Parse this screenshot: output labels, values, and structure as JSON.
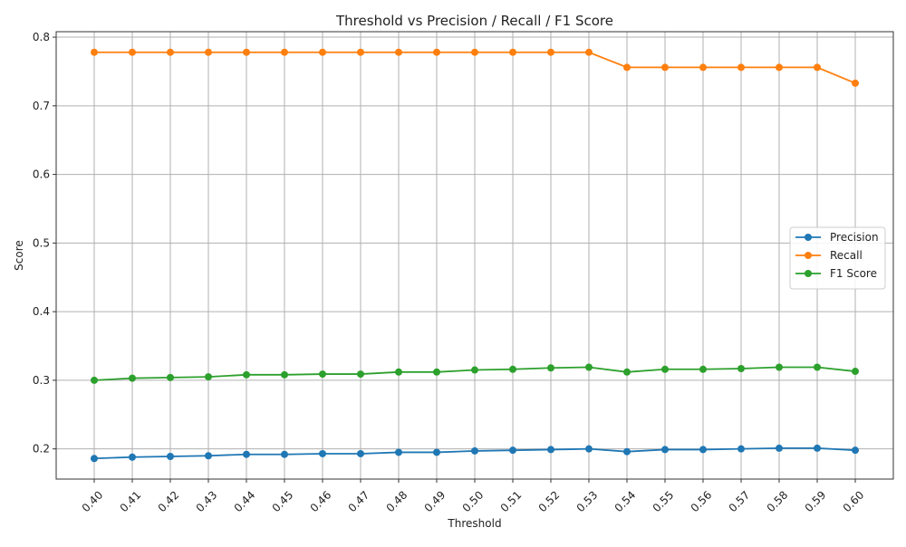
{
  "chart_data": {
    "type": "line",
    "title": "Threshold vs Precision / Recall / F1 Score",
    "xlabel": "Threshold",
    "ylabel": "Score",
    "x": [
      0.4,
      0.41,
      0.42,
      0.43,
      0.44,
      0.45,
      0.46,
      0.47,
      0.48,
      0.49,
      0.5,
      0.51,
      0.52,
      0.53,
      0.54,
      0.55,
      0.56,
      0.57,
      0.58,
      0.59,
      0.6
    ],
    "x_tick_labels": [
      "0.40",
      "0.41",
      "0.42",
      "0.43",
      "0.44",
      "0.45",
      "0.46",
      "0.47",
      "0.48",
      "0.49",
      "0.50",
      "0.51",
      "0.52",
      "0.53",
      "0.54",
      "0.55",
      "0.56",
      "0.57",
      "0.58",
      "0.59",
      "0.60"
    ],
    "y_ticks": [
      0.2,
      0.3,
      0.4,
      0.5,
      0.6,
      0.7,
      0.8
    ],
    "y_tick_labels": [
      "0.2",
      "0.3",
      "0.4",
      "0.5",
      "0.6",
      "0.7",
      "0.8"
    ],
    "xlim": [
      0.39,
      0.61
    ],
    "ylim": [
      0.156,
      0.808
    ],
    "grid": true,
    "legend_position": "center-right",
    "series": [
      {
        "name": "Precision",
        "color": "#1f77b4",
        "values": [
          0.186,
          0.188,
          0.189,
          0.19,
          0.192,
          0.192,
          0.193,
          0.193,
          0.195,
          0.195,
          0.197,
          0.198,
          0.199,
          0.2,
          0.196,
          0.199,
          0.199,
          0.2,
          0.201,
          0.201,
          0.198
        ]
      },
      {
        "name": "Recall",
        "color": "#ff7f0e",
        "values": [
          0.778,
          0.778,
          0.778,
          0.778,
          0.778,
          0.778,
          0.778,
          0.778,
          0.778,
          0.778,
          0.778,
          0.778,
          0.778,
          0.778,
          0.756,
          0.756,
          0.756,
          0.756,
          0.756,
          0.756,
          0.733
        ]
      },
      {
        "name": "F1 Score",
        "color": "#2ca02c",
        "values": [
          0.3,
          0.303,
          0.304,
          0.305,
          0.308,
          0.308,
          0.309,
          0.309,
          0.312,
          0.312,
          0.315,
          0.316,
          0.318,
          0.319,
          0.312,
          0.316,
          0.316,
          0.317,
          0.319,
          0.319,
          0.313
        ]
      }
    ]
  }
}
